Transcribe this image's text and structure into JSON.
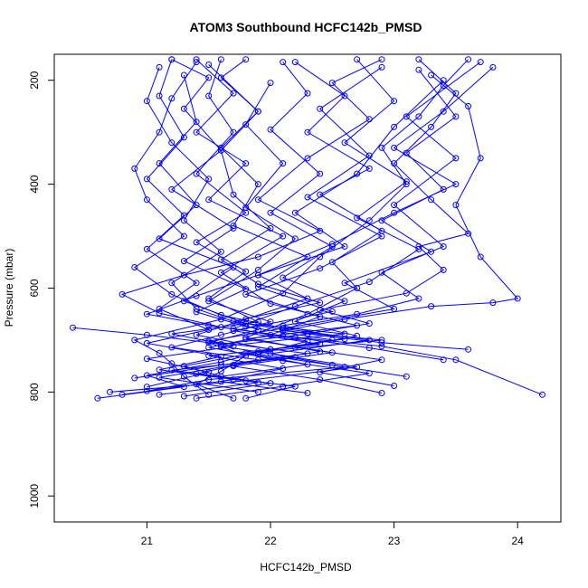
{
  "chart_data": {
    "type": "line",
    "title": "ATOM3 Southbound HCFC142b_PMSD",
    "xlabel": "HCFC142b_PMSD",
    "ylabel": "Pressure (mbar)",
    "xlim": [
      20.25,
      24.35
    ],
    "ylim": [
      1050,
      150
    ],
    "y_reversed": true,
    "x_ticks": [
      "21",
      "22",
      "23",
      "24"
    ],
    "x_tick_values": [
      21,
      22,
      23,
      24
    ],
    "y_ticks": [
      "200",
      "400",
      "600",
      "800",
      "1000"
    ],
    "y_tick_values": [
      200,
      400,
      600,
      800,
      1000
    ],
    "grid": false,
    "series_color": "#0000ff",
    "marker": "open-circle",
    "series": [
      {
        "values": [
          [
            21.5,
            805
          ],
          [
            21.3,
            770
          ],
          [
            21.2,
            745
          ],
          [
            21.1,
            725
          ],
          [
            20.9,
            700
          ],
          [
            21.6,
            660
          ],
          [
            22.1,
            610
          ],
          [
            22.4,
            540
          ],
          [
            22.8,
            470
          ],
          [
            23.1,
            400
          ],
          [
            22.9,
            330
          ],
          [
            23.2,
            270
          ],
          [
            23.4,
            210
          ],
          [
            23.6,
            160
          ]
        ]
      },
      {
        "values": [
          [
            21.7,
            812
          ],
          [
            21.4,
            785
          ],
          [
            21.6,
            760
          ],
          [
            21.8,
            730
          ],
          [
            21.5,
            705
          ],
          [
            21.9,
            680
          ],
          [
            21.4,
            640
          ],
          [
            21.2,
            590
          ],
          [
            21.6,
            530
          ],
          [
            21.3,
            470
          ],
          [
            21.5,
            390
          ],
          [
            21.2,
            320
          ],
          [
            21.0,
            240
          ],
          [
            21.1,
            175
          ]
        ]
      },
      {
        "values": [
          [
            21.9,
            800
          ],
          [
            21.1,
            772
          ],
          [
            21.7,
            748
          ],
          [
            22.4,
            722
          ],
          [
            21.8,
            695
          ],
          [
            22.3,
            650
          ],
          [
            22.7,
            600
          ],
          [
            22.5,
            550
          ],
          [
            22.9,
            490
          ],
          [
            22.4,
            420
          ],
          [
            22.8,
            370
          ],
          [
            22.3,
            300
          ],
          [
            22.6,
            230
          ],
          [
            22.2,
            165
          ]
        ]
      },
      {
        "values": [
          [
            20.6,
            812
          ],
          [
            21.3,
            790
          ],
          [
            21.0,
            768
          ],
          [
            21.6,
            742
          ],
          [
            22.0,
            718
          ],
          [
            21.4,
            690
          ],
          [
            21.8,
            660
          ],
          [
            22.3,
            620
          ],
          [
            21.9,
            575
          ],
          [
            22.6,
            520
          ],
          [
            22.2,
            455
          ],
          [
            22.7,
            380
          ],
          [
            23.0,
            290
          ],
          [
            23.4,
            200
          ]
        ]
      },
      {
        "values": [
          [
            22.3,
            802
          ],
          [
            21.6,
            780
          ],
          [
            22.1,
            755
          ],
          [
            21.5,
            730
          ],
          [
            22.4,
            708
          ],
          [
            21.7,
            682
          ],
          [
            22.5,
            645
          ],
          [
            21.9,
            598
          ],
          [
            22.3,
            540
          ],
          [
            21.7,
            480
          ],
          [
            21.9,
            400
          ],
          [
            21.6,
            330
          ],
          [
            21.9,
            260
          ],
          [
            21.5,
            170
          ]
        ]
      },
      {
        "values": [
          [
            21.3,
            808
          ],
          [
            22.0,
            783
          ],
          [
            21.2,
            758
          ],
          [
            22.2,
            733
          ],
          [
            21.6,
            712
          ],
          [
            22.6,
            688
          ],
          [
            21.8,
            668
          ],
          [
            21.3,
            625
          ],
          [
            21.7,
            560
          ],
          [
            21.1,
            505
          ],
          [
            21.4,
            440
          ],
          [
            21.1,
            360
          ],
          [
            21.4,
            280
          ],
          [
            21.3,
            190
          ]
        ]
      },
      {
        "values": [
          [
            24.2,
            805
          ],
          [
            23.5,
            738
          ],
          [
            22.9,
            712
          ],
          [
            22.1,
            692
          ],
          [
            21.5,
            672
          ],
          [
            21.0,
            650
          ],
          [
            21.4,
            615
          ],
          [
            21.9,
            575
          ],
          [
            22.5,
            515
          ],
          [
            23.0,
            455
          ],
          [
            23.5,
            400
          ],
          [
            23.0,
            330
          ],
          [
            23.4,
            260
          ],
          [
            23.8,
            175
          ]
        ]
      },
      {
        "values": [
          [
            21.0,
            798
          ],
          [
            21.5,
            776
          ],
          [
            22.6,
            752
          ],
          [
            21.9,
            727
          ],
          [
            22.3,
            702
          ],
          [
            21.7,
            678
          ],
          [
            22.2,
            635
          ],
          [
            22.8,
            588
          ],
          [
            23.2,
            525
          ],
          [
            22.7,
            465
          ],
          [
            23.1,
            395
          ],
          [
            22.6,
            320
          ],
          [
            23.0,
            240
          ],
          [
            22.7,
            160
          ]
        ]
      },
      {
        "values": [
          [
            21.8,
            812
          ],
          [
            22.2,
            789
          ],
          [
            21.4,
            765
          ],
          [
            21.9,
            738
          ],
          [
            21.2,
            714
          ],
          [
            21.6,
            690
          ],
          [
            22.0,
            665
          ],
          [
            21.5,
            625
          ],
          [
            21.9,
            565
          ],
          [
            22.2,
            505
          ],
          [
            21.8,
            445
          ],
          [
            22.1,
            360
          ],
          [
            21.8,
            285
          ],
          [
            22.0,
            205
          ]
        ]
      },
      {
        "values": [
          [
            20.7,
            800
          ],
          [
            21.8,
            778
          ],
          [
            22.7,
            752
          ],
          [
            22.0,
            726
          ],
          [
            22.8,
            700
          ],
          [
            22.1,
            678
          ],
          [
            23.0,
            640
          ],
          [
            22.6,
            590
          ],
          [
            23.3,
            530
          ],
          [
            22.9,
            470
          ],
          [
            23.4,
            410
          ],
          [
            23.1,
            340
          ],
          [
            23.5,
            270
          ],
          [
            23.2,
            180
          ]
        ]
      },
      {
        "values": [
          [
            22.9,
            802
          ],
          [
            22.4,
            776
          ],
          [
            21.7,
            750
          ],
          [
            22.5,
            724
          ],
          [
            21.8,
            698
          ],
          [
            22.7,
            672
          ],
          [
            22.0,
            630
          ],
          [
            21.6,
            570
          ],
          [
            22.1,
            500
          ],
          [
            21.5,
            430
          ],
          [
            21.8,
            360
          ],
          [
            21.4,
            300
          ],
          [
            21.7,
            225
          ],
          [
            21.4,
            160
          ]
        ]
      },
      {
        "values": [
          [
            21.1,
            805
          ],
          [
            21.9,
            782
          ],
          [
            21.1,
            757
          ],
          [
            21.6,
            732
          ],
          [
            21.0,
            706
          ],
          [
            21.5,
            680
          ],
          [
            21.1,
            640
          ],
          [
            21.4,
            590
          ],
          [
            21.0,
            525
          ],
          [
            21.3,
            460
          ],
          [
            21.0,
            390
          ],
          [
            21.3,
            310
          ],
          [
            21.1,
            230
          ],
          [
            21.2,
            160
          ]
        ]
      },
      {
        "values": [
          [
            23.4,
            738
          ],
          [
            22.8,
            715
          ],
          [
            22.2,
            695
          ],
          [
            21.6,
            675
          ],
          [
            21.1,
            648
          ],
          [
            20.8,
            612
          ],
          [
            21.3,
            575
          ],
          [
            21.9,
            540
          ],
          [
            22.4,
            490
          ],
          [
            21.9,
            430
          ],
          [
            22.3,
            350
          ],
          [
            22.8,
            275
          ],
          [
            22.5,
            205
          ],
          [
            22.9,
            160
          ]
        ]
      },
      {
        "values": [
          [
            20.9,
            773
          ],
          [
            21.6,
            748
          ],
          [
            22.3,
            726
          ],
          [
            21.5,
            702
          ],
          [
            22.1,
            677
          ],
          [
            21.6,
            652
          ],
          [
            21.2,
            612
          ],
          [
            20.9,
            560
          ],
          [
            21.3,
            500
          ],
          [
            21.0,
            430
          ],
          [
            20.9,
            370
          ],
          [
            21.1,
            300
          ],
          [
            21.2,
            235
          ],
          [
            21.4,
            165
          ]
        ]
      },
      {
        "values": [
          [
            23.6,
            718
          ],
          [
            22.9,
            705
          ],
          [
            22.3,
            688
          ],
          [
            22.8,
            668
          ],
          [
            22.4,
            642
          ],
          [
            23.1,
            610
          ],
          [
            23.4,
            565
          ],
          [
            23.2,
            520
          ],
          [
            23.6,
            495
          ],
          [
            23.3,
            430
          ],
          [
            23.0,
            360
          ],
          [
            23.3,
            290
          ],
          [
            23.5,
            225
          ],
          [
            23.2,
            160
          ]
        ]
      },
      {
        "values": [
          [
            21.4,
            812
          ],
          [
            22.1,
            789
          ],
          [
            22.8,
            764
          ],
          [
            22.1,
            740
          ],
          [
            21.5,
            714
          ],
          [
            22.0,
            690
          ],
          [
            22.4,
            655
          ],
          [
            21.8,
            612
          ],
          [
            22.4,
            562
          ],
          [
            22.9,
            500
          ],
          [
            22.3,
            425
          ],
          [
            22.8,
            345
          ],
          [
            22.4,
            255
          ],
          [
            22.9,
            175
          ]
        ]
      },
      {
        "values": [
          [
            21.6,
            770
          ],
          [
            22.3,
            747
          ],
          [
            21.8,
            725
          ],
          [
            22.9,
            700
          ],
          [
            22.1,
            682
          ],
          [
            22.6,
            660
          ],
          [
            23.3,
            635
          ],
          [
            23.8,
            628
          ],
          [
            24.0,
            620
          ],
          [
            23.7,
            540
          ],
          [
            23.5,
            440
          ],
          [
            23.7,
            350
          ],
          [
            23.6,
            250
          ],
          [
            23.3,
            190
          ]
        ]
      },
      {
        "values": [
          [
            20.4,
            676
          ],
          [
            21.0,
            690
          ],
          [
            21.6,
            708
          ],
          [
            22.3,
            688
          ],
          [
            21.7,
            664
          ],
          [
            22.4,
            628
          ],
          [
            21.9,
            592
          ],
          [
            21.6,
            545
          ],
          [
            22.0,
            485
          ],
          [
            21.7,
            420
          ],
          [
            21.6,
            335
          ],
          [
            21.9,
            260
          ],
          [
            21.6,
            195
          ],
          [
            21.8,
            160
          ]
        ]
      },
      {
        "values": [
          [
            20.8,
            805
          ],
          [
            21.7,
            776
          ],
          [
            21.3,
            750
          ],
          [
            22.0,
            718
          ],
          [
            22.6,
            698
          ],
          [
            22.1,
            672
          ],
          [
            22.7,
            650
          ],
          [
            23.2,
            620
          ],
          [
            22.9,
            570
          ],
          [
            23.4,
            520
          ],
          [
            23.0,
            440
          ],
          [
            23.5,
            350
          ],
          [
            23.1,
            270
          ],
          [
            23.7,
            165
          ]
        ]
      },
      {
        "values": [
          [
            23.1,
            770
          ],
          [
            22.5,
            748
          ],
          [
            21.9,
            722
          ],
          [
            22.5,
            700
          ],
          [
            21.8,
            674
          ],
          [
            21.4,
            646
          ],
          [
            21.8,
            602
          ],
          [
            21.3,
            548
          ],
          [
            21.7,
            485
          ],
          [
            21.2,
            410
          ],
          [
            21.6,
            335
          ],
          [
            21.3,
            255
          ],
          [
            21.5,
            195
          ],
          [
            21.2,
            160
          ]
        ]
      },
      {
        "values": [
          [
            21.0,
            790
          ],
          [
            21.5,
            762
          ],
          [
            21.0,
            736
          ],
          [
            21.7,
            712
          ],
          [
            21.2,
            688
          ],
          [
            21.9,
            665
          ],
          [
            21.5,
            620
          ],
          [
            21.8,
            568
          ],
          [
            21.4,
            512
          ],
          [
            21.8,
            455
          ],
          [
            21.4,
            380
          ],
          [
            21.7,
            300
          ],
          [
            21.5,
            230
          ],
          [
            21.6,
            160
          ]
        ]
      },
      {
        "values": [
          [
            23.0,
            788
          ],
          [
            22.4,
            762
          ],
          [
            22.9,
            738
          ],
          [
            22.2,
            714
          ],
          [
            22.7,
            692
          ],
          [
            22.2,
            664
          ],
          [
            22.6,
            625
          ],
          [
            22.1,
            580
          ],
          [
            22.5,
            520
          ],
          [
            22.0,
            455
          ],
          [
            22.4,
            380
          ],
          [
            22.0,
            295
          ],
          [
            22.3,
            225
          ],
          [
            22.1,
            165
          ]
        ]
      }
    ]
  }
}
